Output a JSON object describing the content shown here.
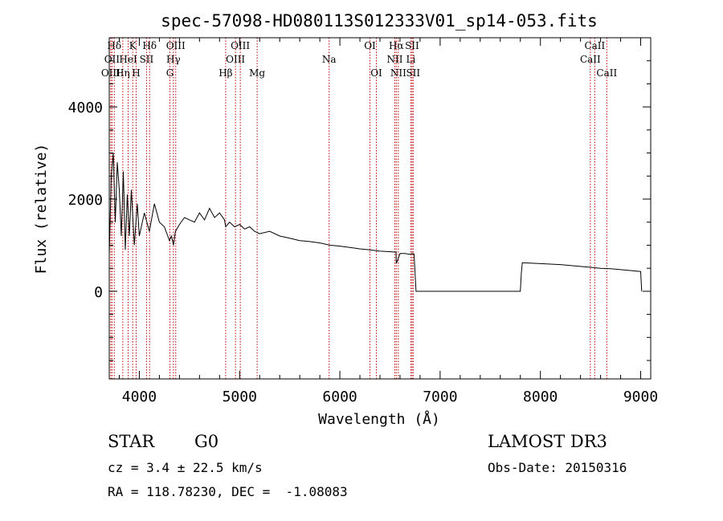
{
  "chart_data": {
    "type": "line",
    "title": "spec-57098-HD080113S012333V01_sp14-053.fits",
    "xlabel": "Wavelength (Å)",
    "ylabel": "Flux (relative)",
    "xlim": [
      3700,
      9100
    ],
    "ylim": [
      -1900,
      5500
    ],
    "xticks": [
      4000,
      5000,
      6000,
      7000,
      8000,
      9000
    ],
    "yticks": [
      0,
      2000,
      4000
    ],
    "grid": false,
    "series": [
      {
        "name": "spectrum",
        "x": [
          3700,
          3720,
          3740,
          3760,
          3780,
          3800,
          3820,
          3840,
          3860,
          3880,
          3900,
          3920,
          3950,
          3980,
          4000,
          4050,
          4100,
          4150,
          4200,
          4250,
          4300,
          4320,
          4340,
          4360,
          4400,
          4450,
          4500,
          4550,
          4600,
          4650,
          4700,
          4750,
          4800,
          4850,
          4861,
          4900,
          4950,
          5000,
          5050,
          5100,
          5150,
          5200,
          5300,
          5400,
          5500,
          5600,
          5700,
          5800,
          5900,
          6000,
          6100,
          6200,
          6300,
          6400,
          6500,
          6560,
          6563,
          6600,
          6650,
          6700,
          6720,
          6740,
          6760,
          6800,
          7000,
          7200,
          7400,
          7600,
          7800,
          7810,
          7820,
          7900,
          8000,
          8100,
          8200,
          8300,
          8400,
          8500,
          8600,
          8700,
          8800,
          8900,
          9000,
          9010
        ],
        "y": [
          800,
          2500,
          3000,
          1500,
          2800,
          2200,
          1200,
          2600,
          900,
          2100,
          1200,
          2200,
          1000,
          1900,
          1200,
          1700,
          1300,
          1900,
          1500,
          1400,
          1100,
          1200,
          1000,
          1300,
          1450,
          1600,
          1550,
          1500,
          1700,
          1550,
          1800,
          1600,
          1700,
          1550,
          1400,
          1500,
          1400,
          1450,
          1350,
          1400,
          1300,
          1250,
          1300,
          1200,
          1150,
          1100,
          1080,
          1050,
          1000,
          980,
          950,
          920,
          900,
          870,
          860,
          850,
          600,
          820,
          820,
          800,
          820,
          810,
          0,
          0,
          0,
          0,
          0,
          0,
          0,
          400,
          620,
          610,
          600,
          590,
          580,
          560,
          540,
          520,
          500,
          490,
          470,
          450,
          430,
          0
        ]
      }
    ],
    "lines": [
      {
        "label": "Hδ",
        "x": 3750,
        "row": 1
      },
      {
        "label": "K",
        "x": 3934,
        "row": 1
      },
      {
        "label": "Hδ",
        "x": 4102,
        "row": 1
      },
      {
        "label": "OIII",
        "x": 4363,
        "row": 1
      },
      {
        "label": "OIII",
        "x": 5007,
        "row": 1
      },
      {
        "label": "OI",
        "x": 6300,
        "row": 1
      },
      {
        "label": "Hα",
        "x": 6563,
        "row": 1
      },
      {
        "label": "SII",
        "x": 6720,
        "row": 1
      },
      {
        "label": "CaII",
        "x": 8542,
        "row": 1
      },
      {
        "label": "OII",
        "x": 3727,
        "row": 2
      },
      {
        "label": "HeI",
        "x": 3889,
        "row": 2
      },
      {
        "label": "SII",
        "x": 4072,
        "row": 2
      },
      {
        "label": "Hγ",
        "x": 4340,
        "row": 2
      },
      {
        "label": "OIII",
        "x": 4959,
        "row": 2
      },
      {
        "label": "Na",
        "x": 5893,
        "row": 2
      },
      {
        "label": "NII",
        "x": 6548,
        "row": 2
      },
      {
        "label": "Li",
        "x": 6708,
        "row": 2
      },
      {
        "label": "CaII",
        "x": 8498,
        "row": 2
      },
      {
        "label": "OIII",
        "x": 3715,
        "row": 3
      },
      {
        "label": "Hη",
        "x": 3835,
        "row": 3
      },
      {
        "label": "H",
        "x": 3968,
        "row": 3
      },
      {
        "label": "G",
        "x": 4305,
        "row": 3
      },
      {
        "label": "Hβ",
        "x": 4861,
        "row": 3
      },
      {
        "label": "Mg",
        "x": 5175,
        "row": 3
      },
      {
        "label": "OI",
        "x": 6364,
        "row": 3
      },
      {
        "label": "NII",
        "x": 6583,
        "row": 3
      },
      {
        "label": "SII",
        "x": 6731,
        "row": 3
      },
      {
        "label": "CaII",
        "x": 8662,
        "row": 3
      }
    ]
  },
  "info": {
    "object_type": "STAR",
    "subclass": "G0",
    "survey": "LAMOST DR3",
    "redshift": "cz = 3.4 ± 22.5 km/s",
    "obs_date": "Obs-Date: 20150316",
    "coords": "RA = 118.78230, DEC =  -1.08083"
  },
  "colors": {
    "line_marker": "#c00000",
    "spectrum": "#000000",
    "axes": "#000000"
  }
}
